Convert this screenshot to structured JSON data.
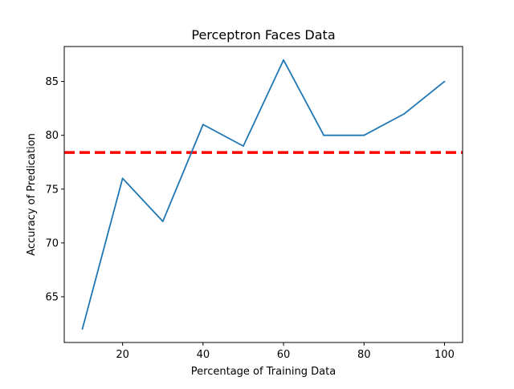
{
  "chart_data": {
    "type": "line",
    "title": "Perceptron Faces Data",
    "xlabel": "Percentage of Training Data",
    "ylabel": "Accuracy of Predication",
    "x": [
      10,
      20,
      30,
      40,
      50,
      60,
      70,
      80,
      90,
      100
    ],
    "series": [
      {
        "values": [
          62,
          76,
          72,
          81,
          79,
          87,
          80,
          80,
          82,
          85
        ],
        "color": "#1f77b4",
        "style": "solid"
      }
    ],
    "reference_lines": [
      {
        "orientation": "horizontal",
        "y": 78.4,
        "color": "#ff0000",
        "style": "dashed"
      }
    ],
    "xlim": [
      5.5,
      104.5
    ],
    "ylim": [
      60.75,
      88.25
    ],
    "x_ticks": [
      20,
      40,
      60,
      80,
      100
    ],
    "y_ticks": [
      65,
      70,
      75,
      80,
      85
    ],
    "grid": false,
    "legend": "none"
  }
}
